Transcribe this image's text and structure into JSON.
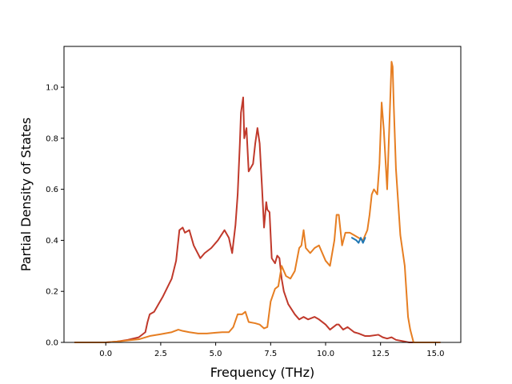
{
  "chart_data": {
    "type": "line",
    "title": "",
    "xlabel": "Frequency (THz)",
    "ylabel": "Partial Density of States",
    "xlim": [
      -1.9,
      16.15
    ],
    "ylim": [
      0.0,
      1.16
    ],
    "xticks": [
      0.0,
      2.5,
      5.0,
      7.5,
      10.0,
      12.5,
      15.0
    ],
    "xtick_labels": [
      "0.0",
      "2.5",
      "5.0",
      "7.5",
      "10.0",
      "12.5",
      "15.0"
    ],
    "yticks": [
      0.0,
      0.2,
      0.4,
      0.6,
      0.8,
      1.0
    ],
    "ytick_labels": [
      "0.0",
      "0.2",
      "0.4",
      "0.6",
      "0.8",
      "1.0"
    ],
    "grid": false,
    "series": [
      {
        "color": "#1f77b4",
        "x": [
          11.2,
          11.4,
          11.5,
          11.6,
          11.7,
          11.8
        ],
        "y": [
          0.41,
          0.4,
          0.39,
          0.41,
          0.39,
          0.41
        ]
      },
      {
        "color": "#c0392b",
        "x": [
          -1.4,
          0.0,
          0.5,
          1.0,
          1.5,
          1.8,
          1.9,
          2.0,
          2.2,
          2.4,
          2.6,
          3.0,
          3.2,
          3.35,
          3.5,
          3.6,
          3.8,
          4.0,
          4.3,
          4.5,
          4.8,
          5.1,
          5.4,
          5.6,
          5.75,
          5.9,
          6.0,
          6.1,
          6.15,
          6.25,
          6.3,
          6.4,
          6.5,
          6.7,
          6.8,
          6.9,
          7.0,
          7.1,
          7.2,
          7.3,
          7.35,
          7.45,
          7.55,
          7.7,
          7.8,
          7.9,
          8.0,
          8.1,
          8.3,
          8.6,
          8.8,
          9.0,
          9.2,
          9.5,
          9.7,
          10.0,
          10.2,
          10.5,
          10.6,
          10.8,
          11.0,
          11.3,
          11.5,
          11.8,
          12.0,
          12.4,
          12.6,
          12.8,
          13.0,
          13.2,
          13.5,
          13.8,
          14.5,
          15.2
        ],
        "y": [
          0.0,
          0.0,
          0.003,
          0.01,
          0.02,
          0.04,
          0.08,
          0.11,
          0.12,
          0.15,
          0.18,
          0.25,
          0.32,
          0.44,
          0.45,
          0.43,
          0.44,
          0.38,
          0.33,
          0.35,
          0.37,
          0.4,
          0.44,
          0.41,
          0.35,
          0.46,
          0.58,
          0.78,
          0.9,
          0.96,
          0.8,
          0.84,
          0.67,
          0.7,
          0.78,
          0.84,
          0.78,
          0.62,
          0.45,
          0.55,
          0.52,
          0.51,
          0.33,
          0.31,
          0.34,
          0.33,
          0.25,
          0.2,
          0.15,
          0.11,
          0.09,
          0.1,
          0.09,
          0.1,
          0.09,
          0.07,
          0.05,
          0.07,
          0.07,
          0.05,
          0.06,
          0.04,
          0.035,
          0.025,
          0.025,
          0.03,
          0.02,
          0.015,
          0.02,
          0.01,
          0.005,
          0.0,
          0.0,
          0.0
        ]
      },
      {
        "color": "#e67e22",
        "x": [
          -1.4,
          0.0,
          0.5,
          1.0,
          1.5,
          2.0,
          2.5,
          3.0,
          3.3,
          3.5,
          3.8,
          4.2,
          4.6,
          5.0,
          5.3,
          5.6,
          5.8,
          6.0,
          6.2,
          6.35,
          6.5,
          6.8,
          7.0,
          7.2,
          7.35,
          7.5,
          7.7,
          7.85,
          8.0,
          8.2,
          8.4,
          8.6,
          8.8,
          8.9,
          9.0,
          9.1,
          9.3,
          9.5,
          9.7,
          9.8,
          10.0,
          10.2,
          10.4,
          10.5,
          10.6,
          10.75,
          10.9,
          11.1,
          11.3,
          11.5,
          11.7,
          11.9,
          12.0,
          12.1,
          12.2,
          12.35,
          12.45,
          12.55,
          12.65,
          12.8,
          12.9,
          13.0,
          13.05,
          13.1,
          13.2,
          13.4,
          13.6,
          13.75,
          13.85,
          14.0,
          14.5,
          15.2
        ],
        "y": [
          0.0,
          0.0,
          0.003,
          0.008,
          0.012,
          0.025,
          0.032,
          0.04,
          0.05,
          0.045,
          0.04,
          0.035,
          0.035,
          0.038,
          0.04,
          0.04,
          0.06,
          0.11,
          0.11,
          0.12,
          0.08,
          0.075,
          0.07,
          0.055,
          0.06,
          0.16,
          0.21,
          0.22,
          0.3,
          0.26,
          0.25,
          0.28,
          0.37,
          0.38,
          0.44,
          0.37,
          0.35,
          0.37,
          0.38,
          0.36,
          0.32,
          0.3,
          0.4,
          0.5,
          0.5,
          0.38,
          0.43,
          0.43,
          0.42,
          0.41,
          0.4,
          0.44,
          0.5,
          0.58,
          0.6,
          0.58,
          0.7,
          0.94,
          0.83,
          0.6,
          0.85,
          1.1,
          1.08,
          0.93,
          0.68,
          0.42,
          0.3,
          0.1,
          0.05,
          0.0,
          0.0,
          0.0
        ]
      }
    ]
  }
}
